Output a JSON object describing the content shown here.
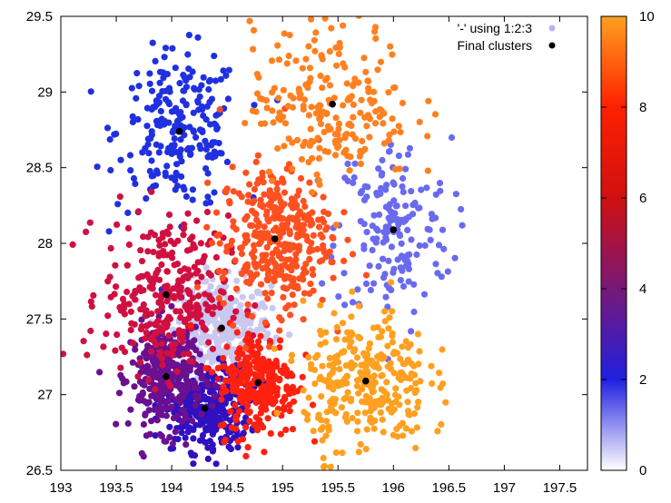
{
  "chart_data": {
    "type": "scatter",
    "title": "",
    "xlabel": "",
    "ylabel": "",
    "xlim": [
      193,
      197.75
    ],
    "ylim": [
      26.5,
      29.5
    ],
    "x_ticks": [
      "193",
      "193.5",
      "194",
      "194.5",
      "195",
      "195.5",
      "196",
      "196.5",
      "197",
      "197.5"
    ],
    "y_ticks": [
      "26.5",
      "27",
      "27.5",
      "28",
      "28.5",
      "29",
      "29.5"
    ],
    "colorbar": {
      "range": [
        0,
        10
      ],
      "ticks": [
        "0",
        "2",
        "4",
        "6",
        "8",
        "10"
      ],
      "palette": [
        "#ffffff",
        "#2020e0",
        "#d01010",
        "#ff2000",
        "#ffa020"
      ]
    },
    "legend": {
      "position": "top-right",
      "entries": [
        {
          "label": "'-' using 1:2:3",
          "color": "#b4b4f0"
        },
        {
          "label": "Final clusters",
          "color": "#000000"
        }
      ]
    },
    "clusters": [
      {
        "id": 0,
        "value": 0.6,
        "color": "#c8c8f0",
        "center": [
          194.45,
          27.44
        ],
        "spread": [
          0.22,
          0.16
        ],
        "n": 320
      },
      {
        "id": 1,
        "value": 1.8,
        "color": "#2030e0",
        "center": [
          194.07,
          28.74
        ],
        "spread": [
          0.28,
          0.26
        ],
        "n": 230
      },
      {
        "id": 2,
        "value": 2.6,
        "color": "#6a6af0",
        "center": [
          196.0,
          28.09
        ],
        "spread": [
          0.26,
          0.3
        ],
        "n": 170
      },
      {
        "id": 3,
        "value": 4.0,
        "color": "#3010c0",
        "center": [
          194.3,
          26.91
        ],
        "spread": [
          0.2,
          0.14
        ],
        "n": 330
      },
      {
        "id": 4,
        "value": 5.0,
        "color": "#6a1090",
        "center": [
          193.95,
          27.12
        ],
        "spread": [
          0.16,
          0.18
        ],
        "n": 320
      },
      {
        "id": 5,
        "value": 6.3,
        "color": "#d01040",
        "center": [
          193.95,
          27.66
        ],
        "spread": [
          0.28,
          0.26
        ],
        "n": 300
      },
      {
        "id": 6,
        "value": 7.0,
        "color": "#ff2010",
        "center": [
          194.78,
          27.08
        ],
        "spread": [
          0.18,
          0.18
        ],
        "n": 260
      },
      {
        "id": 7,
        "value": 8.2,
        "color": "#ff5020",
        "center": [
          194.93,
          28.03
        ],
        "spread": [
          0.25,
          0.24
        ],
        "n": 360
      },
      {
        "id": 8,
        "value": 8.8,
        "color": "#ff8020",
        "center": [
          195.45,
          28.92
        ],
        "spread": [
          0.36,
          0.26
        ],
        "n": 220
      },
      {
        "id": 9,
        "value": 9.8,
        "color": "#ffa020",
        "center": [
          195.75,
          27.09
        ],
        "spread": [
          0.28,
          0.24
        ],
        "n": 300
      }
    ]
  }
}
